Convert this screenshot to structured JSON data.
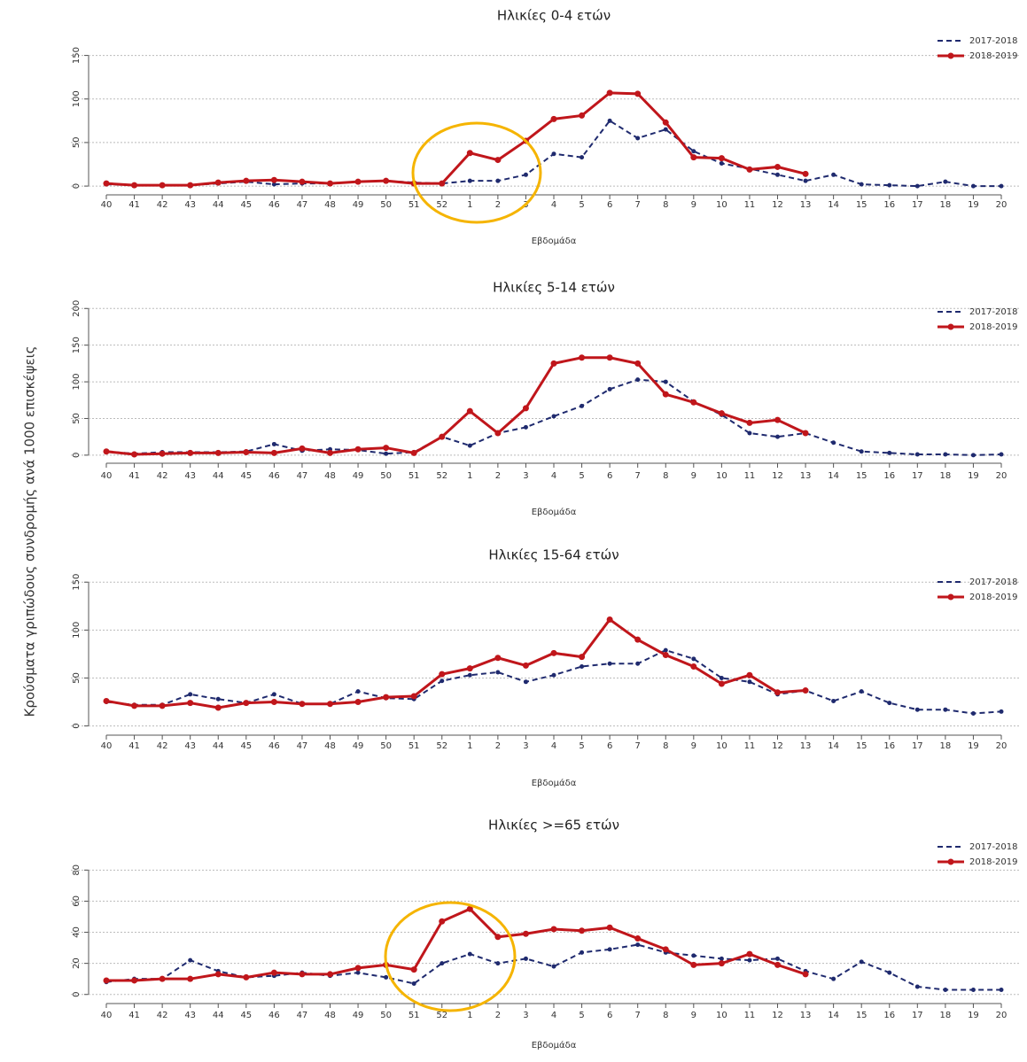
{
  "ylabel": "Κρούσματα γριπώδους συνδρομής ανά 1000 επισκέψεις",
  "chart_data": [
    {
      "type": "line",
      "title": "Ηλικίες 0-4 ετών",
      "xlabel": "Εβδομάδα",
      "categories": [
        "40",
        "41",
        "42",
        "43",
        "44",
        "45",
        "46",
        "47",
        "48",
        "49",
        "50",
        "51",
        "52",
        "1",
        "2",
        "3",
        "4",
        "5",
        "6",
        "7",
        "8",
        "9",
        "10",
        "11",
        "12",
        "13",
        "14",
        "15",
        "16",
        "17",
        "18",
        "19",
        "20"
      ],
      "ylim": [
        -5,
        175
      ],
      "yticks": [
        0,
        50,
        100,
        150
      ],
      "grid": true,
      "legend": "upper right",
      "series": [
        {
          "name": "2017-2018",
          "color": "#1f2a6e",
          "style": "dashed",
          "values": [
            2,
            1,
            1,
            1,
            3,
            5,
            2,
            3,
            3,
            5,
            6,
            4,
            3,
            6,
            6,
            13,
            37,
            33,
            75,
            55,
            65,
            40,
            26,
            20,
            13,
            6,
            13,
            2,
            1,
            0,
            5,
            0,
            0
          ]
        },
        {
          "name": "2018-2019",
          "color": "#c0161b",
          "style": "solid",
          "values": [
            3,
            1,
            1,
            1,
            4,
            6,
            7,
            5,
            3,
            5,
            6,
            3,
            3,
            38,
            30,
            52,
            77,
            81,
            107,
            106,
            73,
            33,
            32,
            19,
            22,
            14,
            null,
            null,
            null,
            null,
            null,
            null,
            null
          ]
        }
      ]
    },
    {
      "type": "line",
      "title": "Ηλικίες 5-14 ετών",
      "xlabel": "Εβδομάδα",
      "categories": [
        "40",
        "41",
        "42",
        "43",
        "44",
        "45",
        "46",
        "47",
        "48",
        "49",
        "50",
        "51",
        "52",
        "1",
        "2",
        "3",
        "4",
        "5",
        "6",
        "7",
        "8",
        "9",
        "10",
        "11",
        "12",
        "13",
        "14",
        "15",
        "16",
        "17",
        "18",
        "19",
        "20"
      ],
      "ylim": [
        -5,
        210
      ],
      "yticks": [
        0,
        50,
        100,
        150,
        200
      ],
      "grid": true,
      "legend": "upper right",
      "series": [
        {
          "name": "2017-2018",
          "color": "#1f2a6e",
          "style": "dashed",
          "values": [
            5,
            2,
            4,
            4,
            4,
            5,
            15,
            6,
            8,
            7,
            2,
            4,
            25,
            13,
            30,
            38,
            53,
            67,
            90,
            103,
            100,
            73,
            55,
            30,
            25,
            30,
            17,
            5,
            3,
            1,
            1,
            0,
            1
          ]
        },
        {
          "name": "2018-2019",
          "color": "#c0161b",
          "style": "solid",
          "values": [
            5,
            1,
            2,
            3,
            3,
            4,
            3,
            9,
            3,
            8,
            10,
            3,
            25,
            60,
            30,
            64,
            125,
            133,
            133,
            125,
            83,
            72,
            57,
            44,
            48,
            30,
            null,
            null,
            null,
            null,
            null,
            null,
            null
          ]
        }
      ]
    },
    {
      "type": "line",
      "title": "Ηλικίες 15-64 ετών",
      "xlabel": "Εβδομάδα",
      "categories": [
        "40",
        "41",
        "42",
        "43",
        "44",
        "45",
        "46",
        "47",
        "48",
        "49",
        "50",
        "51",
        "52",
        "1",
        "2",
        "3",
        "4",
        "5",
        "6",
        "7",
        "8",
        "9",
        "10",
        "11",
        "12",
        "13",
        "14",
        "15",
        "16",
        "17",
        "18",
        "19",
        "20"
      ],
      "ylim": [
        -5,
        165
      ],
      "yticks": [
        0,
        50,
        100,
        150
      ],
      "grid": true,
      "legend": "upper right",
      "series": [
        {
          "name": "2017-2018",
          "color": "#1f2a6e",
          "style": "dashed",
          "values": [
            25,
            22,
            22,
            33,
            28,
            24,
            33,
            23,
            23,
            36,
            29,
            28,
            47,
            53,
            56,
            46,
            53,
            62,
            65,
            65,
            79,
            70,
            50,
            46,
            33,
            37,
            26,
            36,
            24,
            17,
            17,
            13,
            15
          ]
        },
        {
          "name": "2018-2019",
          "color": "#c0161b",
          "style": "solid",
          "values": [
            26,
            21,
            21,
            24,
            19,
            24,
            25,
            23,
            23,
            25,
            30,
            31,
            54,
            60,
            71,
            63,
            76,
            72,
            111,
            90,
            74,
            62,
            44,
            53,
            35,
            37,
            null,
            null,
            null,
            null,
            null,
            null,
            null
          ]
        }
      ]
    },
    {
      "type": "line",
      "title": "Ηλικίες >=65 ετών",
      "xlabel": "Εβδομάδα",
      "categories": [
        "40",
        "41",
        "42",
        "43",
        "44",
        "45",
        "46",
        "47",
        "48",
        "49",
        "50",
        "51",
        "52",
        "1",
        "2",
        "3",
        "4",
        "5",
        "6",
        "7",
        "8",
        "9",
        "10",
        "11",
        "12",
        "13",
        "14",
        "15",
        "16",
        "17",
        "18",
        "19",
        "20"
      ],
      "ylim": [
        -3,
        95
      ],
      "yticks": [
        0,
        20,
        40,
        60,
        80
      ],
      "grid": true,
      "legend": "upper right",
      "series": [
        {
          "name": "2017-2018",
          "color": "#1f2a6e",
          "style": "dashed",
          "values": [
            8,
            10,
            10,
            22,
            15,
            11,
            12,
            14,
            12,
            14,
            11,
            7,
            20,
            26,
            20,
            23,
            18,
            27,
            29,
            32,
            27,
            25,
            23,
            22,
            23,
            15,
            10,
            21,
            14,
            5,
            3,
            3,
            3
          ]
        },
        {
          "name": "2018-2019",
          "color": "#c0161b",
          "style": "solid",
          "values": [
            9,
            9,
            10,
            10,
            13,
            11,
            14,
            13,
            13,
            17,
            19,
            16,
            47,
            55,
            37,
            39,
            42,
            41,
            43,
            36,
            29,
            19,
            20,
            26,
            19,
            13,
            null,
            null,
            null,
            null,
            null,
            null,
            null
          ]
        }
      ]
    }
  ]
}
